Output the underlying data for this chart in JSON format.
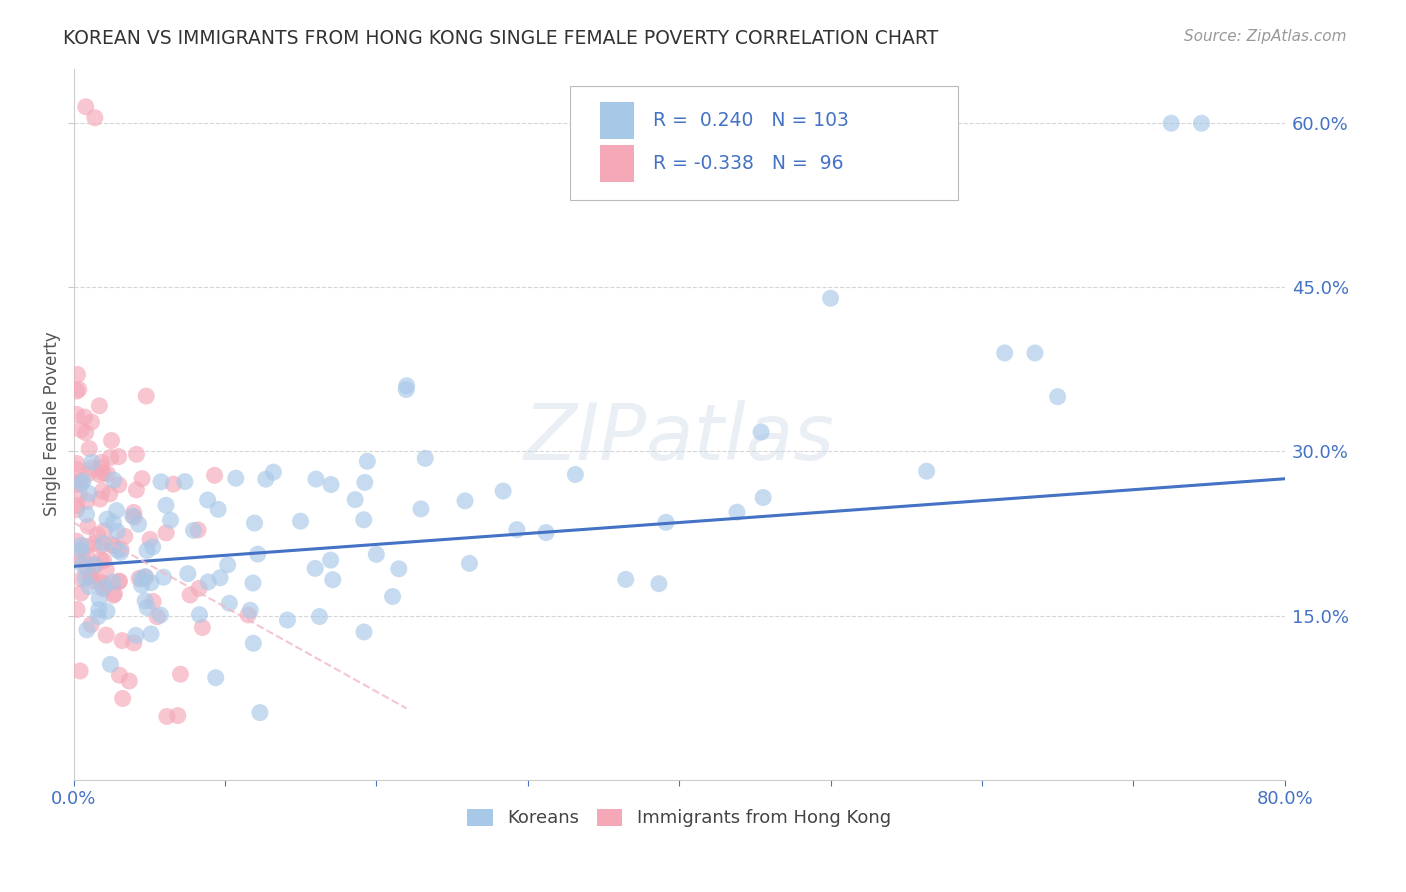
{
  "title": "KOREAN VS IMMIGRANTS FROM HONG KONG SINGLE FEMALE POVERTY CORRELATION CHART",
  "source": "Source: ZipAtlas.com",
  "ylabel": "Single Female Poverty",
  "xlim": [
    0.0,
    0.8
  ],
  "ylim": [
    0.0,
    0.65
  ],
  "ytick_positions": [
    0.15,
    0.3,
    0.45,
    0.6
  ],
  "ytick_labels": [
    "15.0%",
    "30.0%",
    "45.0%",
    "60.0%"
  ],
  "korean_R": 0.24,
  "korean_N": 103,
  "hk_R": -0.338,
  "hk_N": 96,
  "korean_color": "#a8c8e8",
  "hk_color": "#f4a8b8",
  "korean_line_color": "#4472c4",
  "hk_line_color": "#f0b8c8",
  "legend_label_korean": "Koreans",
  "legend_label_hk": "Immigrants from Hong Kong",
  "watermark": "ZIPatlas",
  "title_color": "#333333",
  "axis_label_color": "#4472c4",
  "legend_R_color": "#4472c4",
  "background_color": "#ffffff",
  "korean_line_x0": 0.0,
  "korean_line_x1": 0.8,
  "korean_line_y0": 0.195,
  "korean_line_y1": 0.275,
  "hk_line_x0": 0.0,
  "hk_line_x1": 0.22,
  "hk_line_y0": 0.235,
  "hk_line_y1": 0.065
}
